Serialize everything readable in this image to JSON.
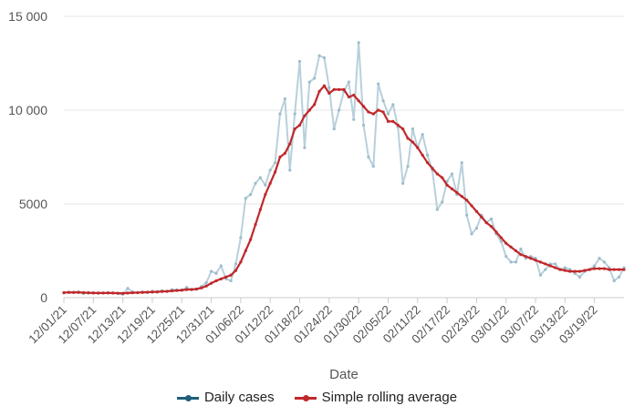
{
  "colors": {
    "daily": "#b8d0db",
    "daily_point": "#9dbccb",
    "daily_legend": "#1f5f7a",
    "rolling": "#c0282b",
    "grid": "#e6e6e6",
    "axis": "#cccccc"
  },
  "chart_data": {
    "type": "line",
    "xlabel": "Date",
    "ylabel": "",
    "ylim": [
      0,
      15000
    ],
    "yticks": [
      0,
      5000,
      10000,
      15000
    ],
    "ytick_labels": [
      "0",
      "5000",
      "10 000",
      "15 000"
    ],
    "x_tick_labels": [
      "12/01/21",
      "12/07/21",
      "12/13/21",
      "12/19/21",
      "12/25/21",
      "12/31/21",
      "01/06/22",
      "01/12/22",
      "01/18/22",
      "01/24/22",
      "01/30/22",
      "02/05/22",
      "02/11/22",
      "02/17/22",
      "02/23/22",
      "03/01/22",
      "03/07/22",
      "03/13/22",
      "03/19/22"
    ],
    "x_start": "12/01/21",
    "grid": true,
    "legend_position": "bottom",
    "series": [
      {
        "name": "Daily cases",
        "values": [
          250,
          300,
          280,
          310,
          220,
          240,
          260,
          230,
          250,
          270,
          240,
          220,
          180,
          500,
          300,
          260,
          310,
          280,
          350,
          300,
          380,
          320,
          430,
          420,
          390,
          550,
          420,
          450,
          600,
          800,
          1400,
          1300,
          1700,
          1000,
          900,
          1800,
          3200,
          5300,
          5500,
          6100,
          6400,
          6000,
          6800,
          7200,
          9800,
          10600,
          6800,
          9800,
          12600,
          8000,
          11500,
          11700,
          12900,
          12800,
          11200,
          9000,
          10000,
          11000,
          11500,
          9500,
          13600,
          9200,
          7500,
          7000,
          11400,
          10500,
          9800,
          10300,
          9100,
          6100,
          7000,
          9000,
          8000,
          8700,
          7600,
          6800,
          4700,
          5100,
          6200,
          6600,
          5500,
          7200,
          4400,
          3400,
          3700,
          4400,
          4000,
          4200,
          3400,
          3000,
          2200,
          1900,
          1900,
          2600,
          2100,
          2200,
          2100,
          1200,
          1500,
          1800,
          1800,
          1500,
          1600,
          1500,
          1300,
          1100,
          1400,
          1500,
          1700,
          2100,
          1900,
          1600,
          900,
          1100,
          1600
        ],
        "color": "#b8d0db"
      },
      {
        "name": "Simple rolling average",
        "values": [
          270,
          280,
          280,
          280,
          270,
          260,
          250,
          250,
          250,
          250,
          250,
          240,
          230,
          250,
          260,
          270,
          280,
          290,
          300,
          310,
          330,
          340,
          360,
          380,
          400,
          430,
          440,
          460,
          520,
          620,
          770,
          900,
          1000,
          1100,
          1200,
          1450,
          1900,
          2500,
          3100,
          3900,
          4700,
          5500,
          6100,
          6700,
          7500,
          7700,
          8200,
          9000,
          9200,
          9700,
          10000,
          10300,
          11000,
          11300,
          10900,
          11100,
          11100,
          11100,
          10700,
          10800,
          10500,
          10200,
          9900,
          9800,
          10000,
          9900,
          9400,
          9400,
          9200,
          9000,
          8500,
          8300,
          8000,
          7600,
          7200,
          6900,
          6600,
          6400,
          6000,
          5800,
          5600,
          5400,
          5200,
          4900,
          4600,
          4300,
          4000,
          3800,
          3500,
          3200,
          2900,
          2700,
          2500,
          2300,
          2200,
          2100,
          2000,
          1900,
          1800,
          1700,
          1600,
          1500,
          1450,
          1400,
          1400,
          1400,
          1450,
          1500,
          1550,
          1550,
          1550,
          1500,
          1500,
          1500,
          1500
        ],
        "color": "#c0282b"
      }
    ]
  },
  "legend": {
    "daily_label": "Daily cases",
    "rolling_label": "Simple rolling average"
  }
}
